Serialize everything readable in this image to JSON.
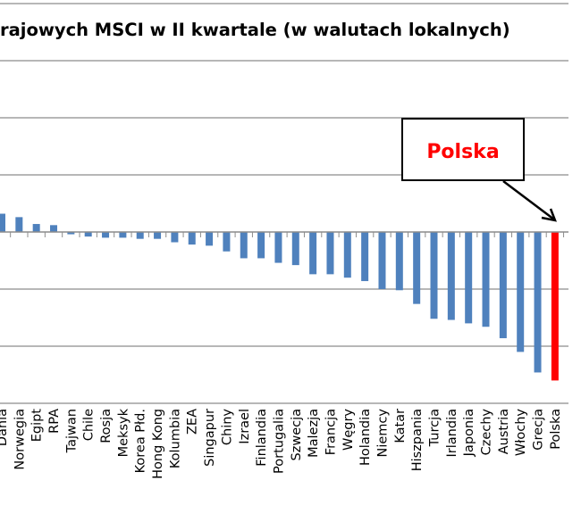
{
  "chart_data": {
    "type": "bar",
    "title": "rajowych MSCI w II kwartale (w walutach lokalnych)",
    "xlabel": "",
    "ylabel": "",
    "ylim": [
      -15,
      20
    ],
    "grid": true,
    "grid_step": 5,
    "categories": [
      "Dania",
      "Norwegia",
      "Egipt",
      "RPA",
      "Tajwan",
      "Chile",
      "Rosja",
      "Meksyk",
      "Korea Płd.",
      "Hong Kong",
      "Kolumbia",
      "ZEA",
      "Singapur",
      "Chiny",
      "Izrael",
      "Finlandia",
      "Portugalia",
      "Szwecja",
      "Malezja",
      "Francja",
      "Węgry",
      "Holandia",
      "Niemcy",
      "Katar",
      "Hiszpania",
      "Turcja",
      "Irlandia",
      "Japonia",
      "Czechy",
      "Austria",
      "Włochy",
      "Grecja",
      "Polska"
    ],
    "values": [
      1.6,
      1.3,
      0.7,
      0.6,
      -0.2,
      -0.4,
      -0.5,
      -0.5,
      -0.6,
      -0.6,
      -0.9,
      -1.1,
      -1.2,
      -1.7,
      -2.3,
      -2.3,
      -2.7,
      -2.9,
      -3.7,
      -3.7,
      -4.0,
      -4.3,
      -5.0,
      -5.1,
      -6.3,
      -7.6,
      -7.7,
      -8.0,
      -8.3,
      -9.3,
      -10.5,
      -12.3,
      -13.0
    ],
    "highlight": "Polska",
    "annotation": "Polska",
    "colors": {
      "bar": "#4f81bd",
      "highlight": "#ff0000",
      "grid": "#8c8c8c"
    }
  }
}
